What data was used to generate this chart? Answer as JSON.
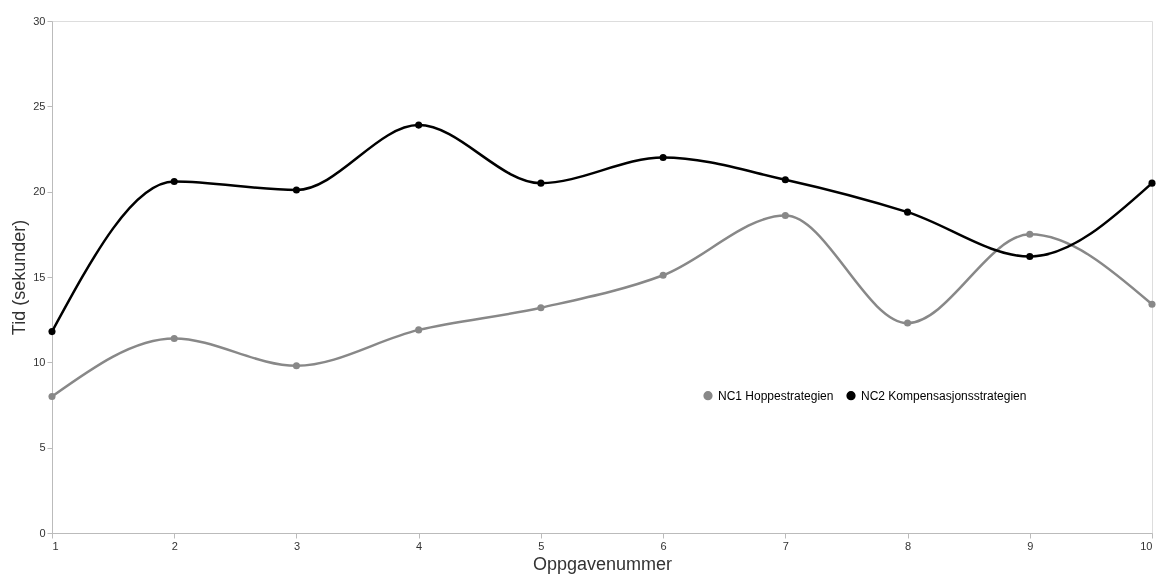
{
  "chart_data": {
    "type": "line",
    "xlabel": "Oppgavenummer",
    "ylabel": "Tid (sekunder)",
    "x": [
      1,
      2,
      3,
      4,
      5,
      6,
      7,
      8,
      9,
      10
    ],
    "xlim": [
      1,
      10
    ],
    "xticks": [
      1,
      2,
      3,
      4,
      5,
      6,
      7,
      8,
      9,
      10
    ],
    "ylim": [
      0,
      30
    ],
    "yticks": [
      0,
      5,
      10,
      15,
      20,
      25,
      30
    ],
    "grid": false,
    "legend": "right",
    "marker": "circle",
    "line_style": "solid",
    "series": [
      {
        "name": "NC1 Hoppestrategien",
        "color": "#888888",
        "values": [
          8.0,
          11.4,
          9.8,
          11.9,
          13.2,
          15.1,
          18.6,
          12.3,
          17.5,
          13.4
        ]
      },
      {
        "name": "NC2 Kompensasjonsstrategien",
        "color": "#000000",
        "values": [
          11.8,
          20.6,
          20.1,
          23.9,
          20.5,
          22.0,
          20.7,
          18.8,
          16.2,
          20.5
        ]
      }
    ]
  }
}
